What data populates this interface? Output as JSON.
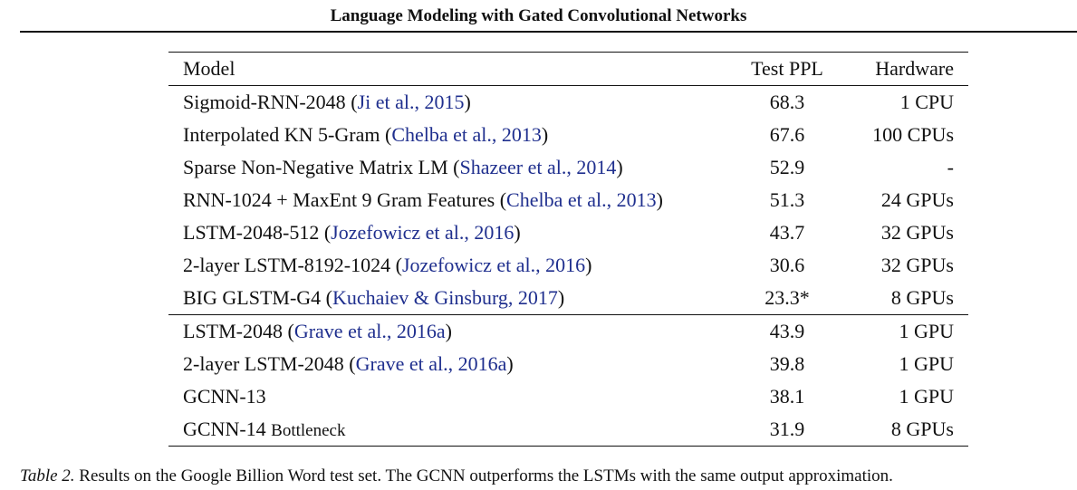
{
  "running_head": "Language Modeling with Gated Convolutional Networks",
  "table": {
    "headers": {
      "model": "Model",
      "ppl": "Test PPL",
      "hardware": "Hardware"
    },
    "group_a": [
      {
        "model": "Sigmoid-RNN-2048",
        "suffix": "",
        "cite": "Ji et al., 2015",
        "ppl": "68.3",
        "hardware": "1 CPU"
      },
      {
        "model": "Interpolated KN 5-Gram",
        "suffix": "",
        "cite": "Chelba et al., 2013",
        "ppl": "67.6",
        "hardware": "100 CPUs"
      },
      {
        "model": "Sparse Non-Negative Matrix LM",
        "suffix": "",
        "cite": "Shazeer et al., 2014",
        "ppl": "52.9",
        "hardware": "-"
      },
      {
        "model": "RNN-1024 + MaxEnt 9 Gram Features",
        "suffix": "",
        "cite": "Chelba et al., 2013",
        "ppl": "51.3",
        "hardware": "24 GPUs"
      },
      {
        "model": "LSTM-2048-512",
        "suffix": "",
        "cite": "Jozefowicz et al., 2016",
        "ppl": "43.7",
        "hardware": "32 GPUs"
      },
      {
        "model": "2-layer LSTM-8192-1024",
        "suffix": "",
        "cite": "Jozefowicz et al., 2016",
        "ppl": "30.6",
        "hardware": "32 GPUs"
      },
      {
        "model": "BIG GLSTM-G4",
        "suffix": "",
        "cite": "Kuchaiev & Ginsburg, 2017",
        "ppl": "23.3*",
        "hardware": "8 GPUs"
      }
    ],
    "group_b": [
      {
        "model": "LSTM-2048",
        "suffix": "",
        "cite": "Grave et al., 2016a",
        "ppl": "43.9",
        "hardware": "1 GPU"
      },
      {
        "model": "2-layer LSTM-2048",
        "suffix": "",
        "cite": "Grave et al., 2016a",
        "ppl": "39.8",
        "hardware": "1 GPU"
      },
      {
        "model": "GCNN-13",
        "suffix": "",
        "cite": "",
        "ppl": "38.1",
        "hardware": "1 GPU"
      },
      {
        "model": "GCNN-14",
        "suffix": "Bottleneck",
        "cite": "",
        "ppl": "31.9",
        "hardware": "8 GPUs"
      }
    ]
  },
  "caption": {
    "label": "Table 2.",
    "text": "Results on the Google Billion Word test set. The GCNN outperforms the LSTMs with the same output approximation."
  }
}
